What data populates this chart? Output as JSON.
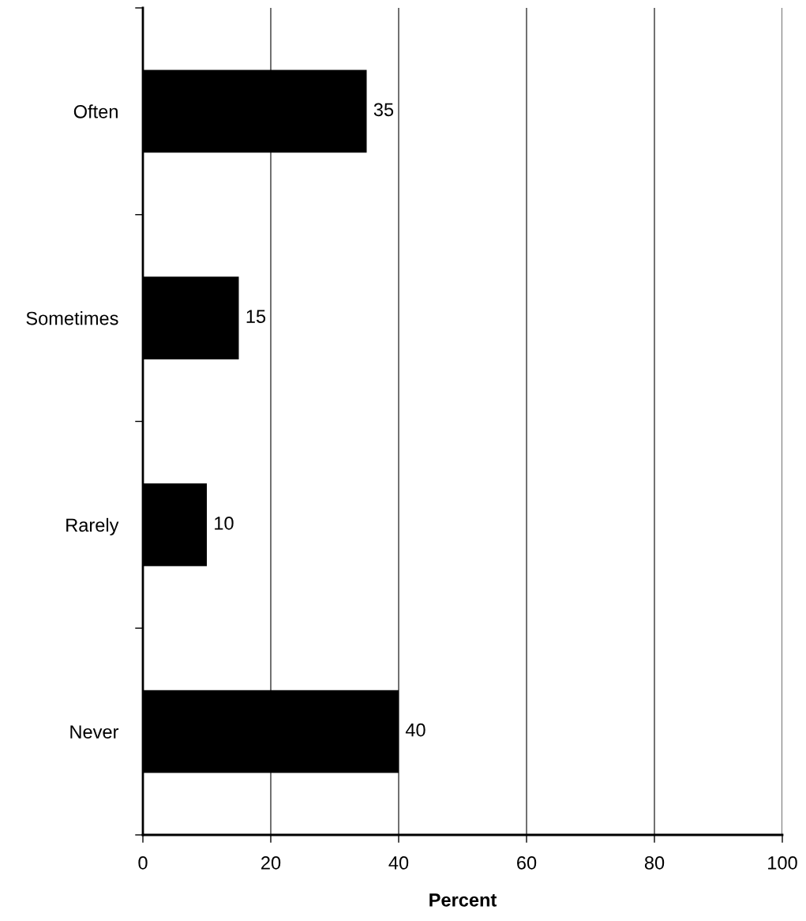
{
  "chart_data": {
    "type": "bar",
    "orientation": "horizontal",
    "categories": [
      "Often",
      "Sometimes",
      "Rarely",
      "Never"
    ],
    "values": [
      35,
      15,
      10,
      40
    ],
    "color": "#000000",
    "xlabel": "Percent",
    "xlim": [
      0,
      100
    ],
    "xticks": [
      0,
      20,
      40,
      60,
      80,
      100
    ],
    "grid": "x",
    "data_labels": true,
    "legend": false
  }
}
